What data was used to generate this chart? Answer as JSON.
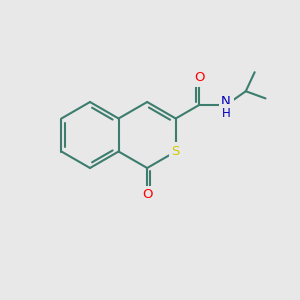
{
  "background_color": "#e8e8e8",
  "bond_color": "#3d7d6e",
  "bond_width": 1.5,
  "S_color": "#cccc00",
  "O_color": "#ff0000",
  "N_color": "#0000bb",
  "figsize": [
    3.0,
    3.0
  ],
  "dpi": 100,
  "xlim": [
    0,
    10
  ],
  "ylim": [
    0,
    10
  ]
}
